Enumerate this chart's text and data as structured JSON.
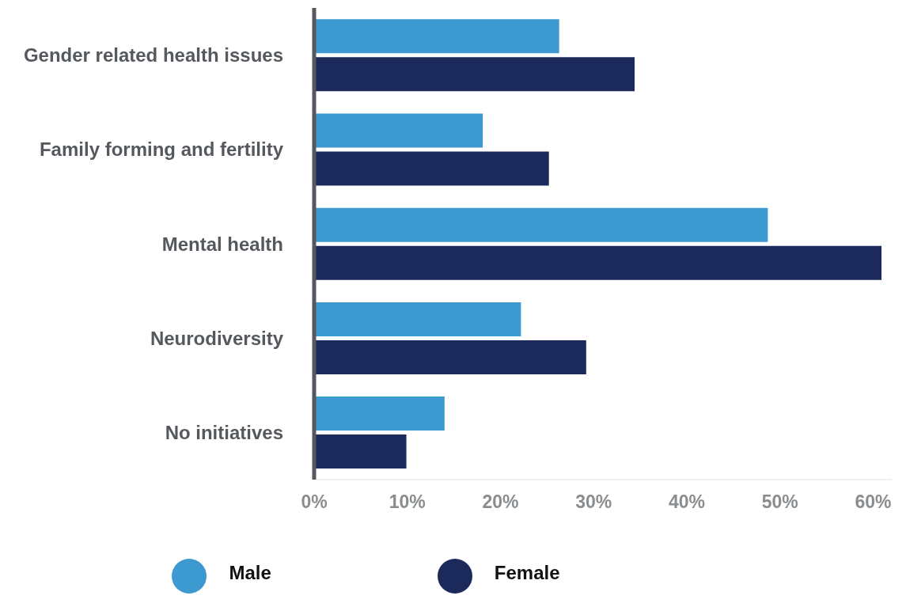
{
  "chart_data": {
    "type": "bar",
    "orientation": "horizontal",
    "categories": [
      "Gender related health issues",
      "Family forming and fertility",
      "Mental health",
      "Neurodiversity",
      "No initiatives"
    ],
    "series": [
      {
        "name": "Male",
        "color": "#3d9ad1",
        "values": [
          26.3,
          18.1,
          48.7,
          22.2,
          14
        ]
      },
      {
        "name": "Female",
        "color": "#1b2a5a",
        "values": [
          34.4,
          25.2,
          60.9,
          29.2,
          9.9
        ]
      }
    ],
    "xlim": [
      0,
      62
    ],
    "xticks": [
      {
        "value": 0,
        "label": "0%"
      },
      {
        "value": 10,
        "label": "10%"
      },
      {
        "value": 20,
        "label": "20%"
      },
      {
        "value": 30,
        "label": "30%"
      },
      {
        "value": 40,
        "label": "40%"
      },
      {
        "value": 50,
        "label": "50%"
      },
      {
        "value": 60,
        "label": "60%"
      }
    ],
    "grid": false,
    "legend": "bottom"
  }
}
